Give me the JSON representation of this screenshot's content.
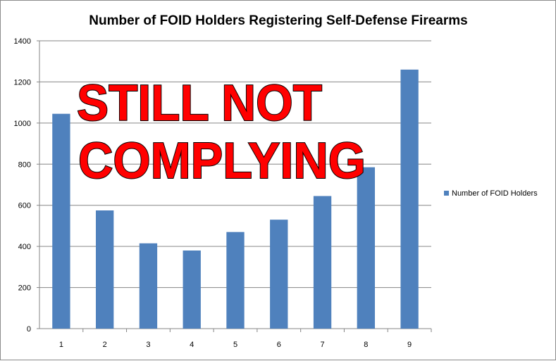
{
  "chart_data": {
    "type": "bar",
    "title": "Number of FOID Holders Registering Self-Defense Firearms",
    "xlabel": "",
    "ylabel": "",
    "categories": [
      "1",
      "2",
      "3",
      "4",
      "5",
      "6",
      "7",
      "8",
      "9"
    ],
    "series": [
      {
        "name": "Number of FOID Holders",
        "values": [
          1045,
          575,
          415,
          380,
          470,
          530,
          645,
          785,
          1260
        ],
        "color": "#4f81bd"
      }
    ],
    "ylim": [
      0,
      1400
    ],
    "yticks": [
      "0",
      "200",
      "400",
      "600",
      "800",
      "1000",
      "1200",
      "1400"
    ],
    "grid": true,
    "legend": "right"
  },
  "overlay": {
    "line1": "STILL NOT",
    "line2": "COMPLYING",
    "color": "#ff0000"
  }
}
